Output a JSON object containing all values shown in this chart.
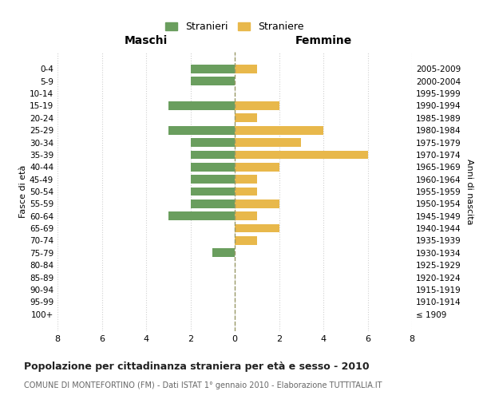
{
  "age_groups": [
    "0-4",
    "5-9",
    "10-14",
    "15-19",
    "20-24",
    "25-29",
    "30-34",
    "35-39",
    "40-44",
    "45-49",
    "50-54",
    "55-59",
    "60-64",
    "65-69",
    "70-74",
    "75-79",
    "80-84",
    "85-89",
    "90-94",
    "95-99",
    "100+"
  ],
  "birth_years": [
    "2005-2009",
    "2000-2004",
    "1995-1999",
    "1990-1994",
    "1985-1989",
    "1980-1984",
    "1975-1979",
    "1970-1974",
    "1965-1969",
    "1960-1964",
    "1955-1959",
    "1950-1954",
    "1945-1949",
    "1940-1944",
    "1935-1939",
    "1930-1934",
    "1925-1929",
    "1920-1924",
    "1915-1919",
    "1910-1914",
    "≤ 1909"
  ],
  "males": [
    2,
    2,
    0,
    3,
    0,
    3,
    2,
    2,
    2,
    2,
    2,
    2,
    3,
    0,
    0,
    1,
    0,
    0,
    0,
    0,
    0
  ],
  "females": [
    1,
    0,
    0,
    2,
    1,
    4,
    3,
    6,
    2,
    1,
    1,
    2,
    1,
    2,
    1,
    0,
    0,
    0,
    0,
    0,
    0
  ],
  "male_color": "#6a9e5e",
  "female_color": "#e8b84b",
  "title": "Popolazione per cittadinanza straniera per età e sesso - 2010",
  "subtitle": "COMUNE DI MONTEFORTINO (FM) - Dati ISTAT 1° gennaio 2010 - Elaborazione TUTTITALIA.IT",
  "ylabel_left": "Fasce di età",
  "ylabel_right": "Anni di nascita",
  "xlabel_left": "Maschi",
  "xlabel_right": "Femmine",
  "legend_male": "Stranieri",
  "legend_female": "Straniere",
  "xlim": 8,
  "background_color": "#ffffff",
  "grid_color": "#d0d0d0",
  "center_line_color": "#999966"
}
